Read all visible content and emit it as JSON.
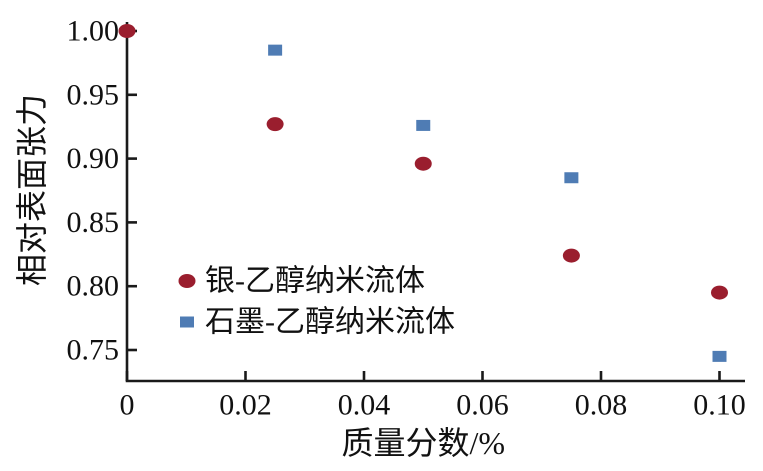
{
  "figure": {
    "background": "#ffffff",
    "axis_color": "#1a1a1a",
    "text_color": "#111111"
  },
  "chart_data": {
    "type": "scatter",
    "title": "",
    "xlabel": "质量分数/%",
    "ylabel": "相对表面张力",
    "xlim": [
      0,
      0.1
    ],
    "ylim": [
      0.75,
      1.0
    ],
    "x_ticks": [
      0,
      0.02,
      0.04,
      0.06,
      0.08,
      0.1
    ],
    "x_tick_labels": [
      "0",
      "0.02",
      "0.04",
      "0.06",
      "0.08",
      "0.10"
    ],
    "y_ticks": [
      1.0,
      0.95,
      0.9,
      0.85,
      0.8,
      0.75
    ],
    "y_tick_labels": [
      "1.00",
      "0.95",
      "0.90",
      "0.85",
      "0.80",
      "0.75"
    ],
    "grid": false,
    "legend_position": "inside-lower-left",
    "series": [
      {
        "name": "银-乙醇纳米流体",
        "marker": "circle",
        "marker_icon": "circle-marker-icon",
        "color": "#9a1e2e",
        "points": [
          [
            0,
            1.0
          ],
          [
            0.025,
            0.927
          ],
          [
            0.05,
            0.896
          ],
          [
            0.075,
            0.824
          ],
          [
            0.1,
            0.795
          ]
        ]
      },
      {
        "name": "石墨-乙醇纳米流体",
        "marker": "square",
        "marker_icon": "square-marker-icon",
        "color": "#4f7cb4",
        "points": [
          [
            0.025,
            0.985
          ],
          [
            0.05,
            0.926
          ],
          [
            0.075,
            0.885
          ],
          [
            0.1,
            0.745
          ]
        ]
      }
    ]
  }
}
